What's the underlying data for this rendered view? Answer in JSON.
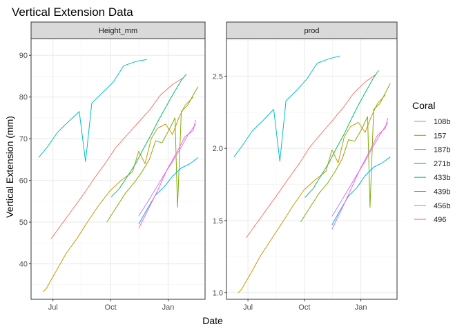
{
  "chart_data": {
    "type": "line",
    "title": "Vertical Extension Data",
    "xlabel": "Date",
    "ylabel": "Vertical Extension (mm)",
    "x_ticks": [
      "Jul",
      "Oct",
      "Jan"
    ],
    "legend": {
      "title": "Coral",
      "position": "right"
    },
    "grid": true,
    "series_styles": [
      {
        "name": "108b",
        "color": "#F8766D"
      },
      {
        "name": "157",
        "color": "#CD9600"
      },
      {
        "name": "187b",
        "color": "#7CAE00"
      },
      {
        "name": "271b",
        "color": "#00BE67"
      },
      {
        "name": "433b",
        "color": "#00BFC4"
      },
      {
        "name": "439b",
        "color": "#00A9FF"
      },
      {
        "name": "456b",
        "color": "#C77CFF"
      },
      {
        "name": "496",
        "color": "#FF61CC"
      }
    ],
    "panels": [
      {
        "strip": "Height_mm",
        "ylim": [
          31.5,
          94
        ],
        "y_ticks": [
          40,
          50,
          60,
          70,
          80,
          90
        ],
        "series": [
          {
            "name": "108b",
            "points": [
              [
                "2017-06-28",
                46
              ],
              [
                "2017-07-15",
                49.5
              ],
              [
                "2017-08-01",
                53
              ],
              [
                "2017-08-18",
                56.5
              ],
              [
                "2017-09-05",
                60.5
              ],
              [
                "2017-09-22",
                64
              ],
              [
                "2017-10-10",
                68
              ],
              [
                "2017-10-28",
                71
              ],
              [
                "2017-11-15",
                74
              ],
              [
                "2017-12-03",
                77
              ],
              [
                "2017-12-20",
                80.5
              ],
              [
                "2018-01-08",
                83
              ],
              [
                "2018-01-25",
                84.6
              ]
            ]
          },
          {
            "name": "157",
            "points": [
              [
                "2017-06-15",
                33.3
              ],
              [
                "2017-06-20",
                34
              ],
              [
                "2017-07-05",
                38
              ],
              [
                "2017-07-22",
                42.5
              ],
              [
                "2017-08-08",
                46
              ],
              [
                "2017-08-25",
                50
              ],
              [
                "2017-09-12",
                54
              ],
              [
                "2017-09-30",
                57.5
              ],
              [
                "2017-10-18",
                60
              ],
              [
                "2017-11-05",
                62
              ],
              [
                "2017-11-15",
                67
              ],
              [
                "2017-11-25",
                64
              ],
              [
                "2017-12-05",
                70
              ],
              [
                "2017-12-15",
                72.5
              ],
              [
                "2017-12-28",
                73.5
              ],
              [
                "2018-01-08",
                71
              ],
              [
                "2018-01-18",
                75
              ],
              [
                "2018-01-28",
                78
              ],
              [
                "2018-02-10",
                80
              ]
            ]
          },
          {
            "name": "187b",
            "points": [
              [
                "2017-09-25",
                50
              ],
              [
                "2017-10-10",
                53.5
              ],
              [
                "2017-10-25",
                57
              ],
              [
                "2017-11-08",
                59.5
              ],
              [
                "2017-11-20",
                62
              ],
              [
                "2017-12-02",
                65
              ],
              [
                "2017-12-12",
                69.5
              ],
              [
                "2017-12-22",
                69
              ],
              [
                "2018-01-02",
                72
              ],
              [
                "2018-01-12",
                75
              ],
              [
                "2018-01-16",
                53.5
              ],
              [
                "2018-01-22",
                76.5
              ],
              [
                "2018-02-01",
                78
              ],
              [
                "2018-02-12",
                81
              ],
              [
                "2018-02-18",
                82.5
              ]
            ]
          },
          {
            "name": "271b",
            "points": [
              [
                "2017-10-02",
                56
              ],
              [
                "2017-10-15",
                58
              ],
              [
                "2017-10-28",
                61
              ],
              [
                "2017-11-10",
                64
              ],
              [
                "2017-11-22",
                67.5
              ],
              [
                "2017-12-05",
                71
              ],
              [
                "2017-12-15",
                74
              ],
              [
                "2017-12-28",
                77.5
              ],
              [
                "2018-01-10",
                81
              ],
              [
                "2018-01-22",
                84
              ],
              [
                "2018-01-30",
                85.5
              ]
            ]
          },
          {
            "name": "433b",
            "points": [
              [
                "2017-06-08",
                65.5
              ],
              [
                "2017-06-22",
                68
              ],
              [
                "2017-07-08",
                71.5
              ],
              [
                "2017-07-25",
                74
              ],
              [
                "2017-08-12",
                76.5
              ],
              [
                "2017-08-22",
                64.5
              ],
              [
                "2017-09-01",
                78.5
              ],
              [
                "2017-09-18",
                81
              ],
              [
                "2017-10-05",
                83.5
              ],
              [
                "2017-10-22",
                87.5
              ],
              [
                "2017-11-10",
                88.5
              ],
              [
                "2017-11-28",
                89
              ]
            ]
          },
          {
            "name": "439b",
            "points": [
              [
                "2017-11-15",
                49.5
              ],
              [
                "2017-11-28",
                53
              ],
              [
                "2017-12-12",
                56.5
              ],
              [
                "2017-12-26",
                58.5
              ],
              [
                "2018-01-08",
                61
              ],
              [
                "2018-01-22",
                63
              ],
              [
                "2018-02-05",
                64
              ],
              [
                "2018-02-18",
                65.5
              ]
            ]
          },
          {
            "name": "456b",
            "points": [
              [
                "2017-11-15",
                51.5
              ],
              [
                "2017-11-28",
                54.5
              ],
              [
                "2017-12-12",
                58
              ],
              [
                "2017-12-26",
                61.5
              ],
              [
                "2018-01-08",
                64.5
              ],
              [
                "2018-01-22",
                68
              ],
              [
                "2018-02-02",
                71
              ],
              [
                "2018-02-14",
                73.5
              ]
            ]
          },
          {
            "name": "496",
            "points": [
              [
                "2017-11-15",
                48.5
              ],
              [
                "2017-11-30",
                53
              ],
              [
                "2017-12-15",
                57.5
              ],
              [
                "2017-12-30",
                62.5
              ],
              [
                "2018-01-14",
                66.5
              ],
              [
                "2018-01-28",
                70.5
              ],
              [
                "2018-02-10",
                72
              ],
              [
                "2018-02-14",
                74.5
              ]
            ]
          }
        ]
      },
      {
        "strip": "prod",
        "ylim": [
          0.955,
          2.76
        ],
        "y_ticks": [
          1.0,
          1.5,
          2.0,
          2.5
        ],
        "series": [
          {
            "name": "108b",
            "points": [
              [
                "2017-06-28",
                1.38
              ],
              [
                "2017-07-15",
                1.48
              ],
              [
                "2017-08-01",
                1.58
              ],
              [
                "2017-08-18",
                1.68
              ],
              [
                "2017-09-05",
                1.79
              ],
              [
                "2017-09-22",
                1.89
              ],
              [
                "2017-10-10",
                2.01
              ],
              [
                "2017-10-28",
                2.1
              ],
              [
                "2017-11-15",
                2.19
              ],
              [
                "2017-12-03",
                2.28
              ],
              [
                "2017-12-20",
                2.38
              ],
              [
                "2018-01-08",
                2.46
              ],
              [
                "2018-01-25",
                2.51
              ]
            ]
          },
          {
            "name": "157",
            "points": [
              [
                "2017-06-15",
                1.0
              ],
              [
                "2017-06-20",
                1.02
              ],
              [
                "2017-07-05",
                1.13
              ],
              [
                "2017-07-22",
                1.26
              ],
              [
                "2017-08-08",
                1.37
              ],
              [
                "2017-08-25",
                1.48
              ],
              [
                "2017-09-12",
                1.6
              ],
              [
                "2017-09-30",
                1.71
              ],
              [
                "2017-10-18",
                1.78
              ],
              [
                "2017-11-05",
                1.84
              ],
              [
                "2017-11-15",
                1.99
              ],
              [
                "2017-11-25",
                1.9
              ],
              [
                "2017-12-05",
                2.08
              ],
              [
                "2017-12-15",
                2.15
              ],
              [
                "2017-12-28",
                2.18
              ],
              [
                "2018-01-08",
                2.11
              ],
              [
                "2018-01-18",
                2.22
              ],
              [
                "2018-01-28",
                2.31
              ],
              [
                "2018-02-10",
                2.37
              ]
            ]
          },
          {
            "name": "187b",
            "points": [
              [
                "2017-09-25",
                1.49
              ],
              [
                "2017-10-10",
                1.59
              ],
              [
                "2017-10-25",
                1.69
              ],
              [
                "2017-11-08",
                1.76
              ],
              [
                "2017-11-20",
                1.84
              ],
              [
                "2017-12-02",
                1.93
              ],
              [
                "2017-12-12",
                2.06
              ],
              [
                "2017-12-22",
                2.05
              ],
              [
                "2018-01-02",
                2.13
              ],
              [
                "2018-01-12",
                2.22
              ],
              [
                "2018-01-16",
                1.59
              ],
              [
                "2018-01-22",
                2.27
              ],
              [
                "2018-02-01",
                2.31
              ],
              [
                "2018-02-12",
                2.4
              ],
              [
                "2018-02-18",
                2.45
              ]
            ]
          },
          {
            "name": "271b",
            "points": [
              [
                "2017-10-02",
                1.66
              ],
              [
                "2017-10-15",
                1.72
              ],
              [
                "2017-10-28",
                1.81
              ],
              [
                "2017-11-10",
                1.9
              ],
              [
                "2017-11-22",
                2.0
              ],
              [
                "2017-12-05",
                2.1
              ],
              [
                "2017-12-15",
                2.19
              ],
              [
                "2017-12-28",
                2.3
              ],
              [
                "2018-01-10",
                2.4
              ],
              [
                "2018-01-22",
                2.49
              ],
              [
                "2018-01-30",
                2.54
              ]
            ]
          },
          {
            "name": "433b",
            "points": [
              [
                "2017-06-08",
                1.94
              ],
              [
                "2017-06-22",
                2.02
              ],
              [
                "2017-07-08",
                2.12
              ],
              [
                "2017-07-25",
                2.19
              ],
              [
                "2017-08-12",
                2.27
              ],
              [
                "2017-08-22",
                1.91
              ],
              [
                "2017-09-01",
                2.33
              ],
              [
                "2017-09-18",
                2.4
              ],
              [
                "2017-10-05",
                2.48
              ],
              [
                "2017-10-22",
                2.59
              ],
              [
                "2017-11-10",
                2.62
              ],
              [
                "2017-11-28",
                2.64
              ]
            ]
          },
          {
            "name": "439b",
            "points": [
              [
                "2017-11-15",
                1.47
              ],
              [
                "2017-11-28",
                1.57
              ],
              [
                "2017-12-12",
                1.67
              ],
              [
                "2017-12-26",
                1.73
              ],
              [
                "2018-01-08",
                1.81
              ],
              [
                "2018-01-22",
                1.87
              ],
              [
                "2018-02-05",
                1.9
              ],
              [
                "2018-02-18",
                1.94
              ]
            ]
          },
          {
            "name": "456b",
            "points": [
              [
                "2017-11-15",
                1.53
              ],
              [
                "2017-11-28",
                1.62
              ],
              [
                "2017-12-12",
                1.72
              ],
              [
                "2017-12-26",
                1.82
              ],
              [
                "2018-01-08",
                1.91
              ],
              [
                "2018-01-22",
                2.02
              ],
              [
                "2018-02-02",
                2.1
              ],
              [
                "2018-02-14",
                2.18
              ]
            ]
          },
          {
            "name": "496",
            "points": [
              [
                "2017-11-15",
                1.44
              ],
              [
                "2017-11-30",
                1.57
              ],
              [
                "2017-12-15",
                1.71
              ],
              [
                "2017-12-30",
                1.85
              ],
              [
                "2018-01-14",
                1.97
              ],
              [
                "2018-01-28",
                2.09
              ],
              [
                "2018-02-10",
                2.14
              ],
              [
                "2018-02-14",
                2.21
              ]
            ]
          }
        ]
      }
    ]
  }
}
